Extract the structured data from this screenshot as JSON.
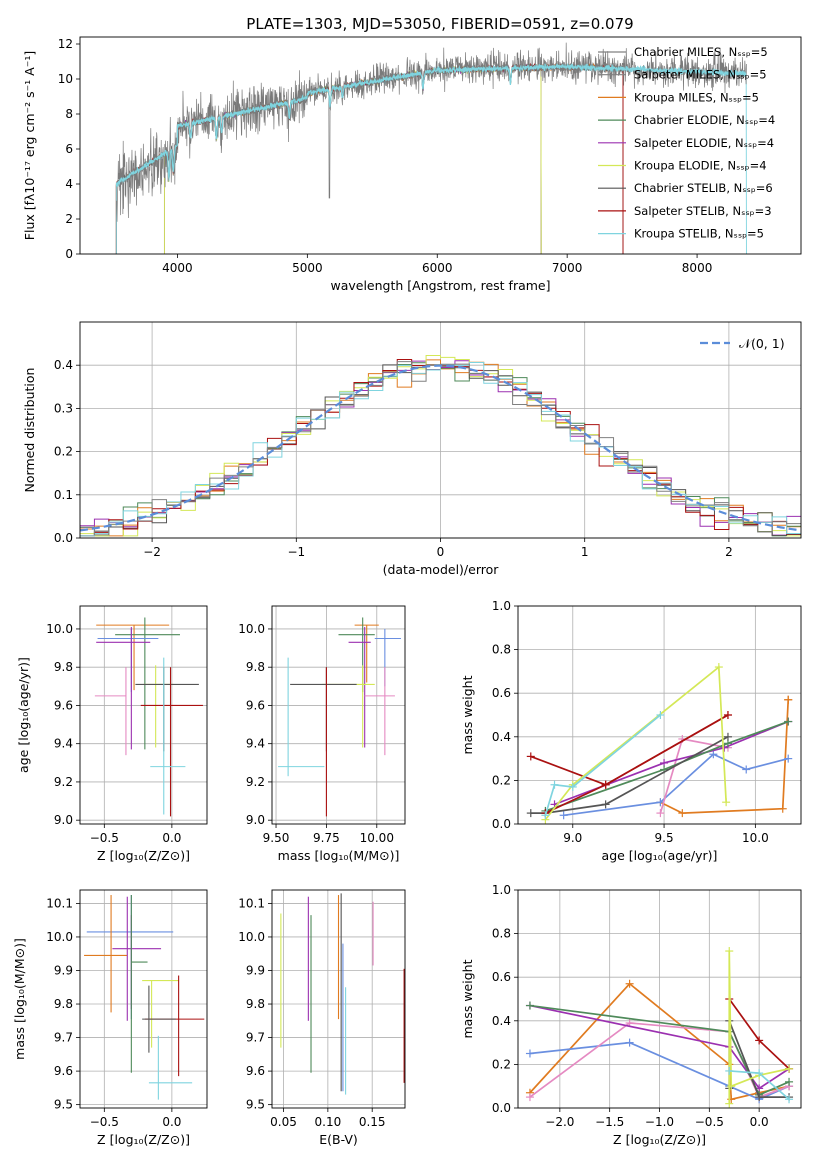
{
  "figure_title": "PLATE=1303, MJD=53050, FIBERID=0591, z=0.079",
  "colors": {
    "Chabrier MILES": "#808080",
    "Salpeter MILES": "#808080",
    "Kroupa MILES": "#e07b20",
    "Chabrier ELODIE": "#4f8a5a",
    "Salpeter ELODIE": "#9b30b0",
    "Kroupa ELODIE": "#d4e857",
    "Chabrier STELIB": "#555555",
    "Salpeter STELIB": "#aa1111",
    "Kroupa STELIB": "#7fd4df",
    "gauss": "#5b8dd9",
    "blue": "#6a8fe0",
    "pink": "#e58ac2"
  },
  "chart_data": [
    {
      "id": "spectrum",
      "type": "line",
      "title": "PLATE=1303, MJD=53050, FIBERID=0591, z=0.079",
      "xlabel": "wavelength [Angstrom, rest frame]",
      "ylabel": "Flux [fλ10⁻¹⁷ erg cm⁻² s⁻¹ A⁻¹]",
      "xlim": [
        3250,
        8800
      ],
      "ylim": [
        0,
        12.4
      ],
      "xticks": [
        4000,
        5000,
        6000,
        7000,
        8000
      ],
      "yticks": [
        0,
        2,
        4,
        6,
        8,
        10,
        12
      ],
      "legend_position": "right",
      "legend": [
        "Chabrier MILES, Nₛₛₚ=5",
        "Salpeter MILES, Nₛₛₚ=5",
        "Kroupa MILES, Nₛₛₚ=5",
        "Chabrier ELODIE, Nₛₛₚ=4",
        "Salpeter ELODIE, Nₛₛₚ=4",
        "Kroupa ELODIE, Nₛₛₚ=4",
        "Chabrier STELIB, Nₛₛₚ=6",
        "Salpeter STELIB, Nₛₛₚ=3",
        "Kroupa STELIB, Nₛₛₚ=5"
      ],
      "models": [
        {
          "name": "Chabrier MILES",
          "range": [
            3530,
            7430
          ]
        },
        {
          "name": "Salpeter MILES",
          "range": [
            3530,
            7430
          ]
        },
        {
          "name": "Kroupa MILES",
          "range": [
            3530,
            7430
          ]
        },
        {
          "name": "Chabrier ELODIE",
          "range": [
            3900,
            6800
          ]
        },
        {
          "name": "Salpeter ELODIE",
          "range": [
            3900,
            6800
          ]
        },
        {
          "name": "Kroupa ELODIE",
          "range": [
            3900,
            6800
          ]
        },
        {
          "name": "Chabrier STELIB",
          "range": [
            3530,
            7430
          ]
        },
        {
          "name": "Salpeter STELIB",
          "range": [
            3530,
            7430
          ]
        },
        {
          "name": "Kroupa STELIB",
          "range": [
            3530,
            8380
          ]
        }
      ],
      "data_range": [
        3530,
        8380
      ]
    },
    {
      "id": "residuals",
      "type": "step",
      "xlabel": "(data-model)/error",
      "ylabel": "Normed distribution",
      "xlim": [
        -2.5,
        2.5
      ],
      "ylim": [
        0,
        0.5
      ],
      "xticks": [
        -2,
        -1,
        0,
        1,
        2
      ],
      "yticks": [
        0.0,
        0.1,
        0.2,
        0.3,
        0.4
      ],
      "legend_position": "upper right",
      "legend": [
        "𝒩(0, 1)"
      ],
      "bin_width": 0.1
    },
    {
      "id": "age_vs_Z",
      "type": "errorbar",
      "xlabel": "Z [log₁₀(Z/Z⊙)]",
      "ylabel": "age  [log₁₀(age/yr)]",
      "xlim": [
        -0.68,
        0.26
      ],
      "ylim": [
        8.98,
        10.12
      ],
      "xticks": [
        -0.5,
        0.0
      ],
      "yticks": [
        9.0,
        9.2,
        9.4,
        9.6,
        9.8,
        10.0
      ],
      "points": [
        {
          "c": "Kroupa MILES",
          "x": -0.28,
          "xe": [
            0.28,
            0.26
          ],
          "y": 10.02,
          "ye": [
            0.34,
            0.0
          ]
        },
        {
          "c": "Chabrier ELODIE",
          "x": -0.2,
          "xe": [
            0.22,
            0.26
          ],
          "y": 9.97,
          "ye": [
            0.6,
            0.09
          ]
        },
        {
          "c": "blue",
          "x": -0.3,
          "xe": [
            0.25,
            0.2
          ],
          "y": 9.95,
          "ye": [
            0.28,
            0.05
          ]
        },
        {
          "c": "Salpeter ELODIE",
          "x": -0.3,
          "xe": [
            0.26,
            0.14
          ],
          "y": 9.93,
          "ye": [
            0.56,
            0.08
          ]
        },
        {
          "c": "Kroupa ELODIE",
          "x": -0.12,
          "xe": [
            0.09,
            0.13
          ],
          "y": 9.71,
          "ye": [
            0.33,
            0.1
          ]
        },
        {
          "c": "Chabrier STELIB",
          "x": -0.06,
          "xe": [
            0.21,
            0.26
          ],
          "y": 9.71,
          "ye": [
            0.35,
            0.09
          ]
        },
        {
          "c": "pink",
          "x": -0.34,
          "xe": [
            0.23,
            0.0
          ],
          "y": 9.65,
          "ye": [
            0.31,
            0.15
          ]
        },
        {
          "c": "Salpeter STELIB",
          "x": -0.01,
          "xe": [
            0.22,
            0.24
          ],
          "y": 9.6,
          "ye": [
            0.58,
            0.2
          ]
        },
        {
          "c": "Kroupa STELIB",
          "x": -0.06,
          "xe": [
            0.1,
            0.16
          ],
          "y": 9.28,
          "ye": [
            0.25,
            0.57
          ]
        }
      ]
    },
    {
      "id": "age_vs_mass",
      "type": "errorbar",
      "xlabel": "mass [log₁₀(M/M⊙)]",
      "ylabel": "",
      "xlim": [
        9.48,
        10.14
      ],
      "ylim": [
        8.98,
        10.12
      ],
      "xticks": [
        9.5,
        9.75,
        10.0
      ],
      "yticks": [
        9.0,
        9.2,
        9.4,
        9.6,
        9.8,
        10.0
      ],
      "points": [
        {
          "c": "Kroupa MILES",
          "x": 9.95,
          "xe": [
            0.06,
            0.06
          ],
          "y": 10.02,
          "ye": [
            0.3,
            0.0
          ]
        },
        {
          "c": "Chabrier ELODIE",
          "x": 9.93,
          "xe": [
            0.12,
            0.06
          ],
          "y": 9.97,
          "ye": [
            0.3,
            0.09
          ]
        },
        {
          "c": "blue",
          "x": 10.04,
          "xe": [
            0.05,
            0.08
          ],
          "y": 9.95,
          "ye": [
            0.25,
            0.05
          ]
        },
        {
          "c": "Salpeter ELODIE",
          "x": 9.94,
          "xe": [
            0.08,
            0.03
          ],
          "y": 9.93,
          "ye": [
            0.55,
            0.08
          ]
        },
        {
          "c": "Kroupa ELODIE",
          "x": 9.93,
          "xe": [
            0.2,
            0.06
          ],
          "y": 9.71,
          "ye": [
            0.33,
            0.1
          ]
        },
        {
          "c": "Chabrier STELIB",
          "x": 9.75,
          "xe": [
            0.18,
            0.15
          ],
          "y": 9.71,
          "ye": [
            0.35,
            0.09
          ]
        },
        {
          "c": "pink",
          "x": 10.04,
          "xe": [
            0.1,
            0.05
          ],
          "y": 9.65,
          "ye": [
            0.31,
            0.15
          ]
        },
        {
          "c": "Salpeter STELIB",
          "x": 9.75,
          "xe": [
            0.0,
            0.0
          ],
          "y": 9.6,
          "ye": [
            0.58,
            0.2
          ]
        },
        {
          "c": "Kroupa STELIB",
          "x": 9.56,
          "xe": [
            0.05,
            0.18
          ],
          "y": 9.28,
          "ye": [
            0.05,
            0.57
          ]
        }
      ]
    },
    {
      "id": "mass_weight_vs_age",
      "type": "line",
      "xlabel": "age  [log₁₀(age/yr)]",
      "ylabel": "mass weight",
      "xlim": [
        8.7,
        10.25
      ],
      "ylim": [
        0,
        1.0
      ],
      "xticks": [
        9.0,
        9.5,
        10.0
      ],
      "yticks": [
        0.0,
        0.2,
        0.4,
        0.6,
        0.8,
        1.0
      ],
      "series": [
        {
          "c": "Kroupa MILES",
          "x": [
            9.48,
            9.6,
            10.15,
            10.18,
            10.18
          ],
          "y": [
            0.1,
            0.05,
            0.07,
            0.57,
            0.57
          ]
        },
        {
          "c": "blue",
          "x": [
            8.95,
            9.48,
            9.77,
            9.95,
            10.18
          ],
          "y": [
            0.04,
            0.1,
            0.32,
            0.25,
            0.3
          ]
        },
        {
          "c": "pink",
          "x": [
            9.48,
            9.6,
            9.85
          ],
          "y": [
            0.05,
            0.39,
            0.35
          ]
        },
        {
          "c": "Salpeter ELODIE",
          "x": [
            8.9,
            9.5,
            9.83,
            10.18
          ],
          "y": [
            0.09,
            0.28,
            0.35,
            0.47
          ]
        },
        {
          "c": "Chabrier ELODIE",
          "x": [
            8.85,
            9.5,
            9.85,
            10.18
          ],
          "y": [
            0.06,
            0.25,
            0.37,
            0.47
          ]
        },
        {
          "c": "Chabrier STELIB",
          "x": [
            8.77,
            8.85,
            9.18,
            9.85
          ],
          "y": [
            0.05,
            0.05,
            0.09,
            0.4
          ]
        },
        {
          "c": "Salpeter STELIB",
          "x": [
            8.77,
            9.18,
            9.85
          ],
          "y": [
            0.31,
            0.18,
            0.5
          ]
        },
        {
          "c": "Salpeter STELIB",
          "x": [
            8.85,
            9.18,
            9.85
          ],
          "y": [
            0.05,
            0.18,
            0.5
          ]
        },
        {
          "c": "Kroupa ELODIE",
          "x": [
            8.85,
            9.0,
            9.8,
            9.84
          ],
          "y": [
            0.02,
            0.18,
            0.72,
            0.1
          ]
        },
        {
          "c": "Kroupa STELIB",
          "x": [
            8.85,
            8.9,
            9.0,
            9.48
          ],
          "y": [
            0.04,
            0.18,
            0.17,
            0.5
          ]
        }
      ]
    },
    {
      "id": "mass_vs_Z",
      "type": "errorbar",
      "xlabel": "Z [log₁₀(Z/Z⊙)]",
      "ylabel": "mass [log₁₀(M/M⊙)]",
      "xlim": [
        -0.68,
        0.26
      ],
      "ylim": [
        9.49,
        10.14
      ],
      "xticks": [
        -0.5,
        0.0
      ],
      "yticks": [
        9.5,
        9.6,
        9.7,
        9.8,
        9.9,
        10.0,
        10.1
      ],
      "points": [
        {
          "c": "blue",
          "x": -0.3,
          "xe": [
            0.33,
            0.31
          ],
          "y": 10.015,
          "ye": [
            0.26,
            0.11
          ]
        },
        {
          "c": "Kroupa MILES",
          "x": -0.45,
          "xe": [
            0.2,
            0.12
          ],
          "y": 9.945,
          "ye": [
            0.17,
            0.18
          ]
        },
        {
          "c": "Salpeter ELODIE",
          "x": -0.3,
          "xe": [
            0.14,
            0.22
          ],
          "y": 9.965,
          "ye": [
            0.18,
            0.1
          ]
        },
        {
          "c": "Chabrier ELODIE",
          "x": -0.3,
          "xe": [
            0.0,
            0.12
          ],
          "y": 9.925,
          "ye": [
            0.33,
            0.2
          ]
        },
        {
          "c": "Kroupa ELODIE",
          "x": -0.15,
          "xe": [
            0.07,
            0.2
          ],
          "y": 9.87,
          "ye": [
            0.2,
            0.0
          ]
        },
        {
          "c": "Salpeter STELIB",
          "x": 0.05,
          "xe": [
            0.25,
            0.19
          ],
          "y": 9.755,
          "ye": [
            0.17,
            0.13
          ]
        },
        {
          "c": "Chabrier STELIB",
          "x": -0.17,
          "xe": [
            0.05,
            0.2
          ],
          "y": 9.755,
          "ye": [
            0.1,
            0.1
          ]
        },
        {
          "c": "Kroupa STELIB",
          "x": -0.1,
          "xe": [
            0.07,
            0.25
          ],
          "y": 9.565,
          "ye": [
            0.05,
            0.14
          ]
        },
        {
          "c": "Salpeter ELODIE",
          "x": -0.33,
          "xe": [
            0.0,
            0.0
          ],
          "y": 9.95,
          "ye": [
            0.2,
            0.17
          ]
        }
      ]
    },
    {
      "id": "mass_vs_EBV",
      "type": "errorbar",
      "xlabel": "E(B-V)",
      "ylabel": "",
      "xlim": [
        0.037,
        0.187
      ],
      "ylim": [
        9.49,
        10.14
      ],
      "xticks": [
        0.05,
        0.1,
        0.15
      ],
      "yticks": [
        9.5,
        9.6,
        9.7,
        9.8,
        9.9,
        10.0,
        10.1
      ],
      "points": [
        {
          "c": "Kroupa ELODIE",
          "x": 0.047,
          "y": 9.87,
          "ye": [
            0.2,
            0.2
          ]
        },
        {
          "c": "Salpeter ELODIE",
          "x": 0.078,
          "y": 9.95,
          "ye": [
            0.2,
            0.17
          ]
        },
        {
          "c": "Chabrier ELODIE",
          "x": 0.081,
          "y": 9.835,
          "ye": [
            0.24,
            0.23
          ]
        },
        {
          "c": "Kroupa MILES",
          "x": 0.112,
          "y": 9.945,
          "ye": [
            0.19,
            0.18
          ]
        },
        {
          "c": "blue",
          "x": 0.117,
          "y": 9.7,
          "ye": [
            0.16,
            0.28
          ]
        },
        {
          "c": "Chabrier STELIB",
          "x": 0.115,
          "y": 9.8,
          "ye": [
            0.26,
            0.33
          ]
        },
        {
          "c": "Kroupa STELIB",
          "x": 0.12,
          "y": 9.69,
          "ye": [
            0.16,
            0.16
          ]
        },
        {
          "c": "pink",
          "x": 0.151,
          "y": 9.985,
          "ye": [
            0.07,
            0.12
          ]
        },
        {
          "c": "Salpeter STELIB",
          "x": 0.186,
          "y": 9.735,
          "ye": [
            0.17,
            0.17
          ]
        }
      ]
    },
    {
      "id": "mass_weight_vs_Z",
      "type": "line",
      "xlabel": "Z [log₁₀(Z/Z⊙)]",
      "ylabel": "mass weight",
      "xlim": [
        -2.42,
        0.42
      ],
      "ylim": [
        0,
        1.0
      ],
      "xticks": [
        -2.0,
        -1.5,
        -1.0,
        -0.5,
        0.0
      ],
      "yticks": [
        0.0,
        0.2,
        0.4,
        0.6,
        0.8,
        1.0
      ],
      "series": [
        {
          "c": "Kroupa MILES",
          "x": [
            -2.3,
            -1.3,
            -0.3,
            -0.28,
            0.0,
            0.3
          ],
          "y": [
            0.07,
            0.57,
            0.2,
            0.04,
            0.07,
            0.1
          ]
        },
        {
          "c": "blue",
          "x": [
            -2.3,
            -1.3,
            -0.3,
            0.0,
            0.3
          ],
          "y": [
            0.25,
            0.3,
            0.1,
            0.04,
            0.1
          ]
        },
        {
          "c": "pink",
          "x": [
            -2.3,
            -1.3,
            -0.3,
            0.0,
            0.3
          ],
          "y": [
            0.05,
            0.39,
            0.35,
            0.05,
            0.1
          ]
        },
        {
          "c": "Salpeter ELODIE",
          "x": [
            -2.3,
            -0.3,
            0.0,
            0.3
          ],
          "y": [
            0.47,
            0.28,
            0.09,
            0.18
          ]
        },
        {
          "c": "Chabrier ELODIE",
          "x": [
            -2.3,
            -0.3,
            0.0,
            0.3
          ],
          "y": [
            0.47,
            0.35,
            0.06,
            0.12
          ]
        },
        {
          "c": "Chabrier STELIB",
          "x": [
            -0.3,
            -0.3,
            0.0,
            0.3
          ],
          "y": [
            0.09,
            0.4,
            0.05,
            0.05
          ]
        },
        {
          "c": "Salpeter STELIB",
          "x": [
            -0.3,
            0.0,
            0.3
          ],
          "y": [
            0.5,
            0.31,
            0.18
          ]
        },
        {
          "c": "Kroupa ELODIE",
          "x": [
            -0.3,
            -0.3,
            -0.28,
            0.0,
            0.3
          ],
          "y": [
            0.02,
            0.72,
            0.1,
            0.15,
            0.18
          ]
        },
        {
          "c": "Kroupa STELIB",
          "x": [
            -0.3,
            0.0,
            0.3
          ],
          "y": [
            0.17,
            0.16,
            0.04
          ]
        }
      ]
    }
  ]
}
